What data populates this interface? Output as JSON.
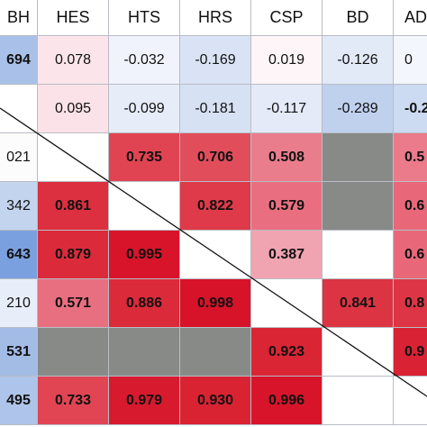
{
  "table": {
    "header": [
      "BH",
      "HES",
      "HTS",
      "HRS",
      "CSP",
      "BD",
      "AD"
    ],
    "rows": [
      [
        {
          "text": "694",
          "bold": true,
          "fill": "#a9c1e8"
        },
        {
          "text": "0.078",
          "bold": false,
          "fill": "#fbe5ea"
        },
        {
          "text": "-0.032",
          "bold": false,
          "fill": "#f0f3fb"
        },
        {
          "text": "-0.169",
          "bold": false,
          "fill": "#d9e3f5"
        },
        {
          "text": "0.019",
          "bold": false,
          "fill": "#fdf5f7"
        },
        {
          "text": "-0.126",
          "bold": false,
          "fill": "#e2e9f7"
        },
        {
          "text": "0",
          "bold": false,
          "fill": "#f3f6fc"
        }
      ],
      [
        {
          "fill": "#ffffff"
        },
        {
          "text": "0.095",
          "bold": false,
          "fill": "#fbe2e8"
        },
        {
          "text": "-0.099",
          "bold": false,
          "fill": "#e6ecf8"
        },
        {
          "text": "-0.181",
          "bold": false,
          "fill": "#d7e1f4"
        },
        {
          "text": "-0.117",
          "bold": false,
          "fill": "#e4eaf7"
        },
        {
          "text": "-0.289",
          "bold": false,
          "fill": "#c0d1ee"
        },
        {
          "text": "-0.2",
          "bold": true,
          "fill": "#ccdaf2"
        }
      ],
      [
        {
          "text": "021",
          "bold": false,
          "fill": "#fcfcfd"
        },
        {
          "fill": "#ffffff"
        },
        {
          "text": "0.735",
          "bold": true,
          "fill": "#e04452"
        },
        {
          "text": "0.706",
          "bold": true,
          "fill": "#e24d5c"
        },
        {
          "text": "0.508",
          "bold": true,
          "fill": "#ea7d8c"
        },
        {
          "fill": "#888a88"
        },
        {
          "text": "0.5",
          "bold": true,
          "fill": "#eb7a8a"
        }
      ],
      [
        {
          "text": "342",
          "bold": false,
          "fill": "#c3d4ef"
        },
        {
          "text": "0.861",
          "bold": true,
          "fill": "#dc2f3f"
        },
        {
          "fill": "#ffffff"
        },
        {
          "text": "0.822",
          "bold": true,
          "fill": "#de3a49"
        },
        {
          "text": "0.579",
          "bold": true,
          "fill": "#e96f80"
        },
        {
          "fill": "#888a88"
        },
        {
          "text": "0.6",
          "bold": true,
          "fill": "#e8687a"
        }
      ],
      [
        {
          "text": "643",
          "bold": true,
          "fill": "#7ba0e0"
        },
        {
          "text": "0.879",
          "bold": true,
          "fill": "#db2b3b"
        },
        {
          "text": "0.995",
          "bold": true,
          "fill": "#d7142a"
        },
        {
          "fill": "#ffffff"
        },
        {
          "text": "0.387",
          "bold": true,
          "fill": "#f0a3b1"
        },
        {
          "fill": "#ffffff"
        },
        {
          "text": "0.6",
          "bold": true,
          "fill": "#e8687a"
        }
      ],
      [
        {
          "text": "210",
          "bold": false,
          "fill": "#e8eef9"
        },
        {
          "text": "0.571",
          "bold": true,
          "fill": "#e86f80"
        },
        {
          "text": "0.886",
          "bold": true,
          "fill": "#db2a3a"
        },
        {
          "text": "0.998",
          "bold": true,
          "fill": "#d7132a"
        },
        {
          "fill": "#ffffff"
        },
        {
          "text": "0.841",
          "bold": true,
          "fill": "#dc3443"
        },
        {
          "text": "0.8",
          "bold": true,
          "fill": "#dd3545"
        }
      ],
      [
        {
          "text": "531",
          "bold": true,
          "fill": "#a3bce6"
        },
        {
          "fill": "#888a88"
        },
        {
          "fill": "#888a88"
        },
        {
          "fill": "#888a88"
        },
        {
          "text": "0.923",
          "bold": true,
          "fill": "#da2535"
        },
        {
          "fill": "#ffffff"
        },
        {
          "text": "0.9",
          "bold": true,
          "fill": "#d92233"
        }
      ],
      [
        {
          "text": "495",
          "bold": true,
          "fill": "#aec4ea"
        },
        {
          "text": "0.733",
          "bold": true,
          "fill": "#e14553"
        },
        {
          "text": "0.979",
          "bold": true,
          "fill": "#d81a2e"
        },
        {
          "text": "0.930",
          "bold": true,
          "fill": "#d92333"
        },
        {
          "text": "0.996",
          "bold": true,
          "fill": "#d7142a"
        },
        {
          "fill": "#ffffff"
        },
        {
          "fill": "#ffffff"
        }
      ]
    ]
  }
}
